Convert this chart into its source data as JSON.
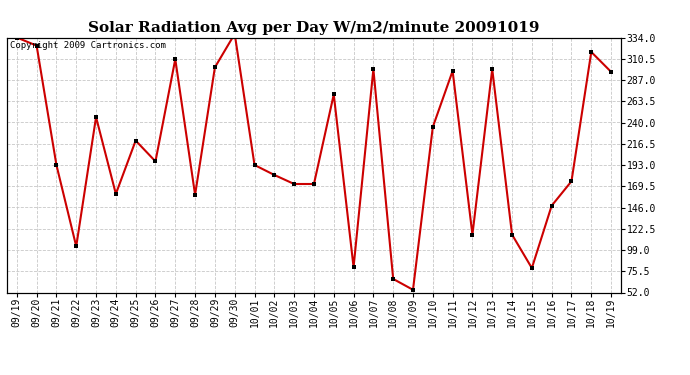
{
  "title": "Solar Radiation Avg per Day W/m2/minute 20091019",
  "copyright": "Copyright 2009 Cartronics.com",
  "labels": [
    "09/19",
    "09/20",
    "09/21",
    "09/22",
    "09/23",
    "09/24",
    "09/25",
    "09/26",
    "09/27",
    "09/28",
    "09/29",
    "09/30",
    "10/01",
    "10/02",
    "10/03",
    "10/04",
    "10/05",
    "10/06",
    "10/07",
    "10/08",
    "10/09",
    "10/10",
    "10/11",
    "10/12",
    "10/13",
    "10/14",
    "10/15",
    "10/16",
    "10/17",
    "10/18",
    "10/19"
  ],
  "values": [
    334.0,
    325.0,
    193.0,
    103.0,
    246.0,
    161.0,
    220.0,
    197.0,
    310.0,
    160.0,
    301.0,
    338.0,
    193.0,
    182.0,
    172.0,
    172.0,
    271.0,
    80.0,
    299.0,
    67.0,
    55.0,
    235.0,
    297.0,
    116.0,
    299.0,
    116.0,
    79.0,
    148.0,
    175.0,
    318.0,
    296.0
  ],
  "ymin": 52.0,
  "ymax": 334.0,
  "yticks": [
    52.0,
    75.5,
    99.0,
    122.5,
    146.0,
    169.5,
    193.0,
    216.5,
    240.0,
    263.5,
    287.0,
    310.5,
    334.0
  ],
  "line_color": "#cc0000",
  "marker_color": "#000000",
  "bg_color": "#ffffff",
  "grid_color": "#c8c8c8",
  "title_fontsize": 11,
  "tick_fontsize": 7,
  "copyright_fontsize": 6.5
}
